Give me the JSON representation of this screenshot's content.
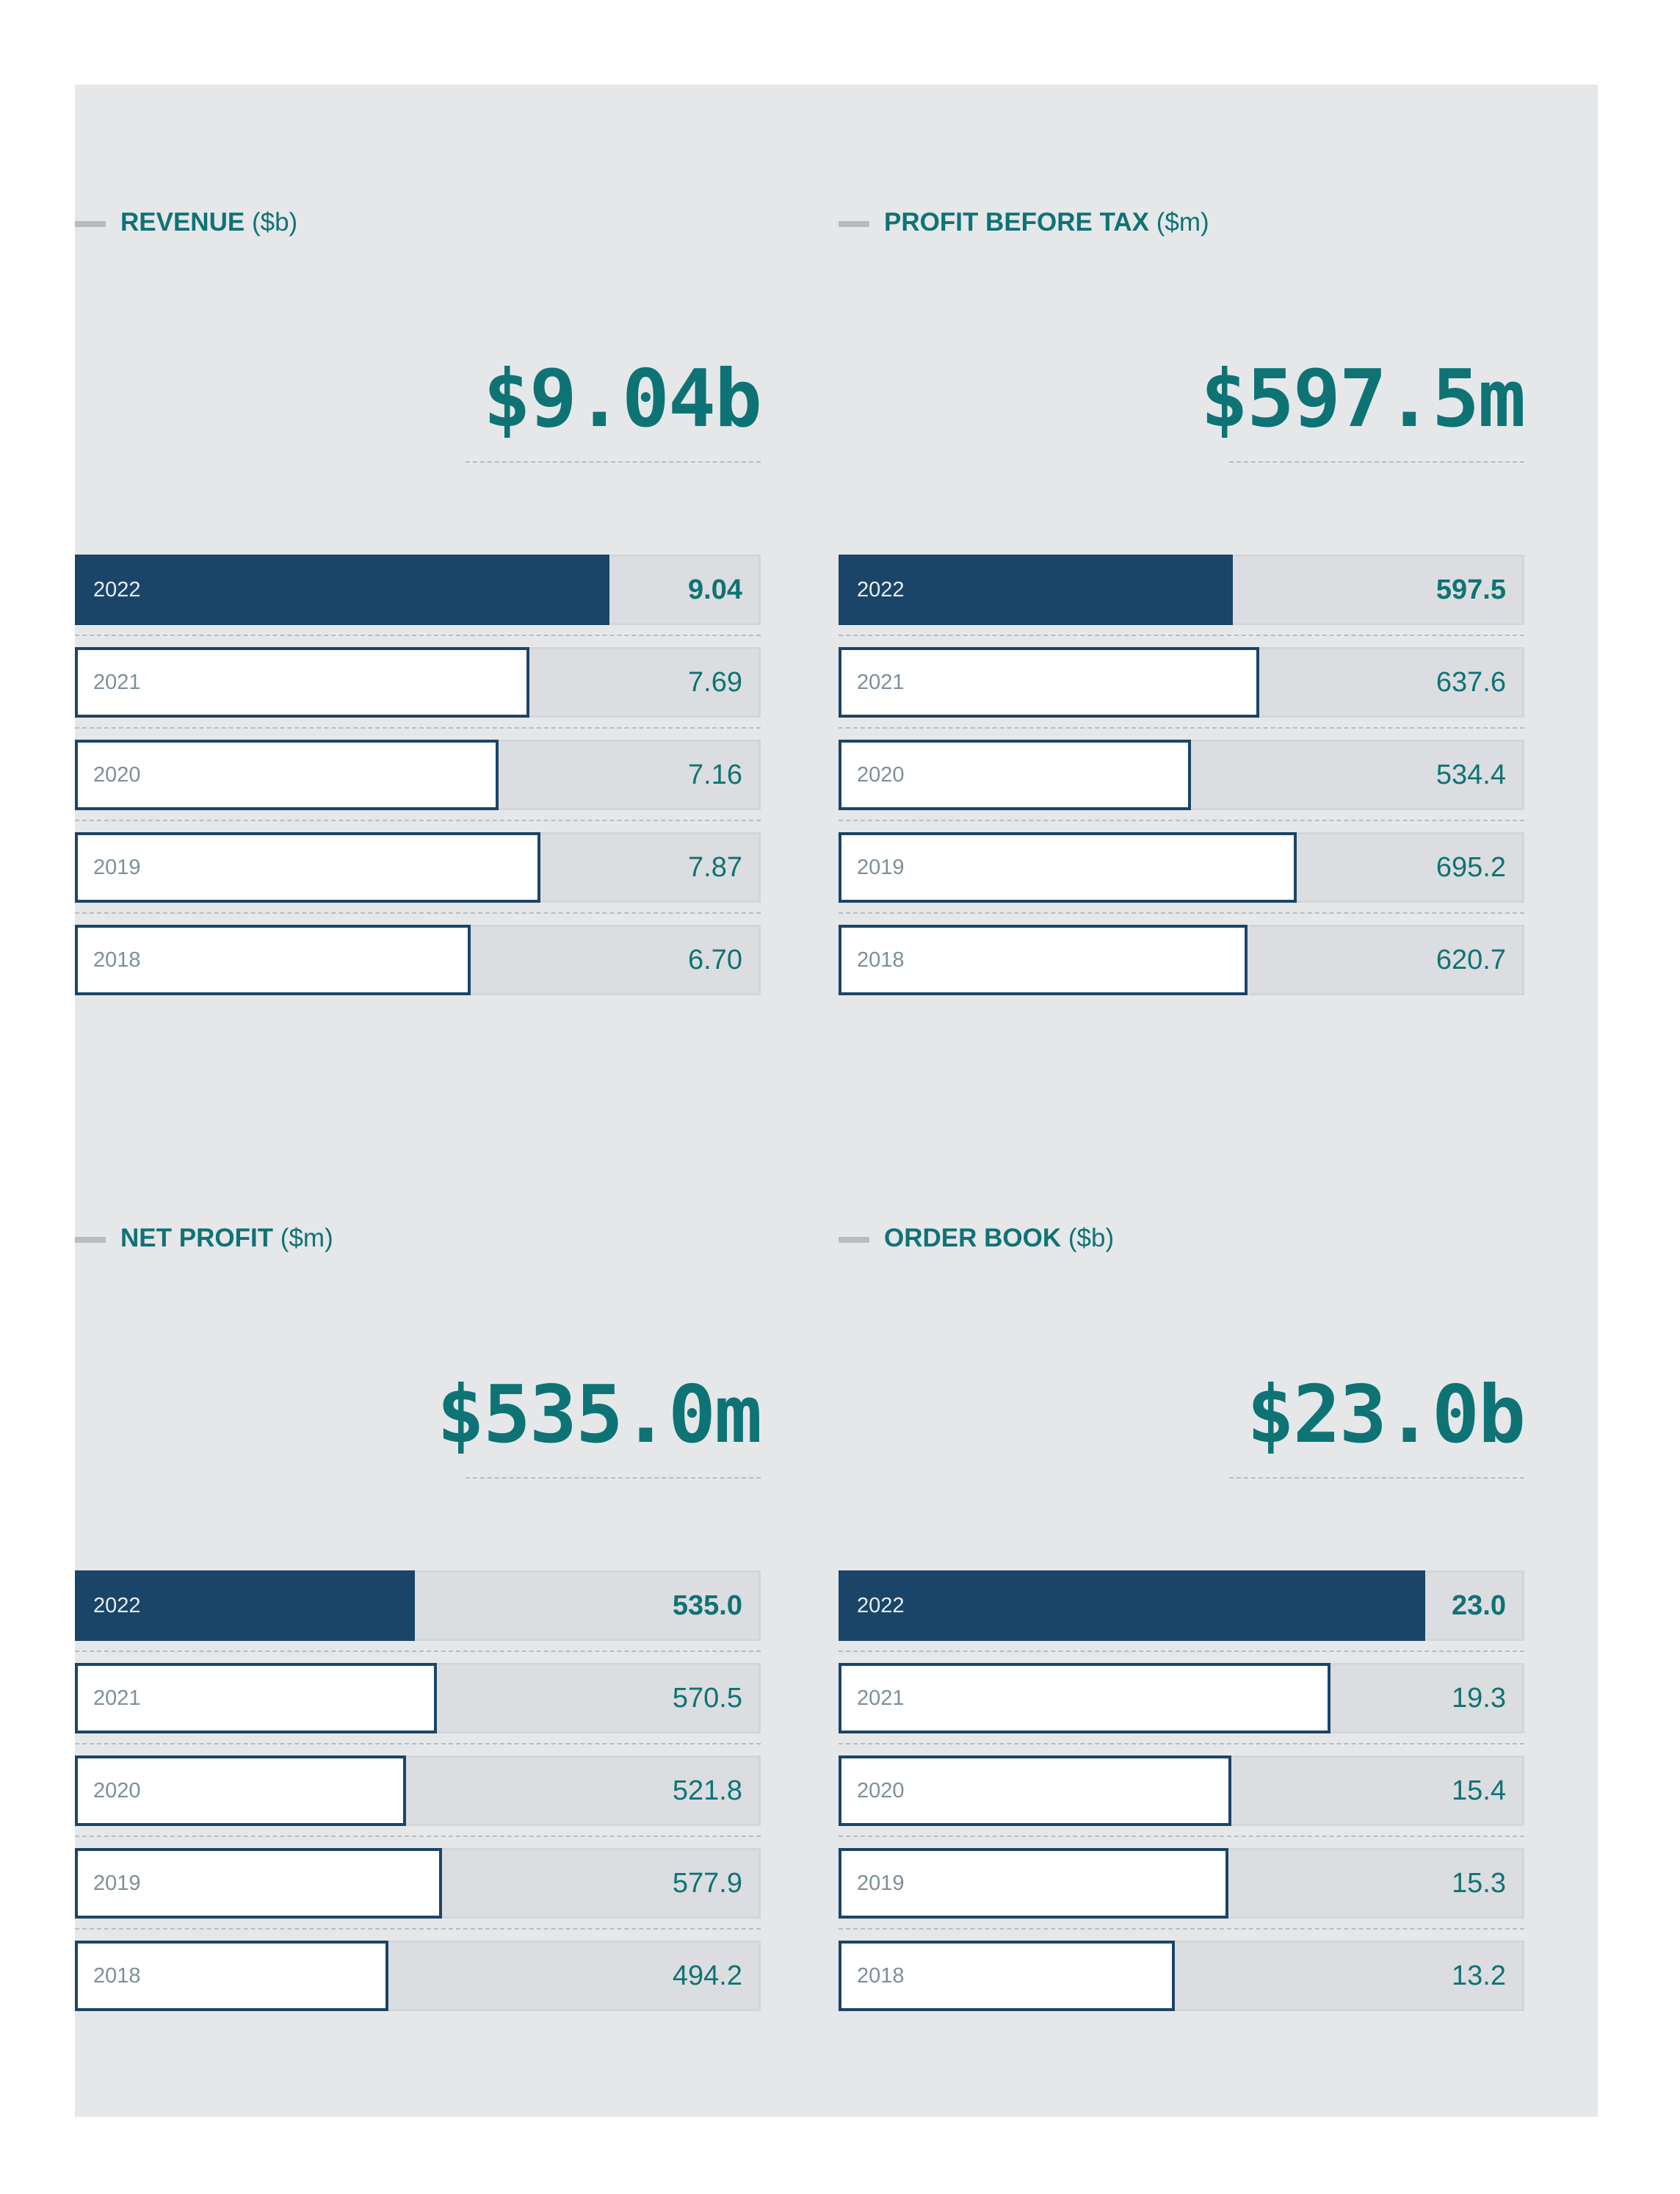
{
  "chart_data": [
    {
      "type": "bar",
      "title": "REVENUE",
      "unit": "($b)",
      "headline": "$9.04b",
      "categories": [
        "2022",
        "2021",
        "2020",
        "2019",
        "2018"
      ],
      "values": [
        9.04,
        7.69,
        7.16,
        7.87,
        6.7
      ],
      "value_labels": [
        "9.04",
        "7.69",
        "7.16",
        "7.87",
        "6.70"
      ],
      "xlim": [
        0,
        11.6
      ]
    },
    {
      "type": "bar",
      "title": "PROFIT BEFORE TAX",
      "unit": "($m)",
      "headline": "$597.5m",
      "categories": [
        "2022",
        "2021",
        "2020",
        "2019",
        "2018"
      ],
      "values": [
        597.5,
        637.6,
        534.4,
        695.2,
        620.7
      ],
      "value_labels": [
        "597.5",
        "637.6",
        "534.4",
        "695.2",
        "620.7"
      ],
      "xlim": [
        0,
        1040
      ]
    },
    {
      "type": "bar",
      "title": "NET PROFIT",
      "unit": "($m)",
      "headline": "$535.0m",
      "categories": [
        "2022",
        "2021",
        "2020",
        "2019",
        "2018"
      ],
      "values": [
        535.0,
        570.5,
        521.8,
        577.9,
        494.2
      ],
      "value_labels": [
        "535.0",
        "570.5",
        "521.8",
        "577.9",
        "494.2"
      ],
      "xlim": [
        0,
        1080
      ]
    },
    {
      "type": "bar",
      "title": "ORDER BOOK",
      "unit": "($b)",
      "headline": "$23.0b",
      "categories": [
        "2022",
        "2021",
        "2020",
        "2019",
        "2018"
      ],
      "values": [
        23.0,
        19.3,
        15.4,
        15.3,
        13.2
      ],
      "value_labels": [
        "23.0",
        "19.3",
        "15.4",
        "15.3",
        "13.2"
      ],
      "xlim": [
        0,
        26.9
      ]
    }
  ],
  "colors": {
    "accent": "#0e7375",
    "bar_dark": "#1b4568",
    "panel": "#e6e7e9",
    "track": "#dcdde0"
  }
}
